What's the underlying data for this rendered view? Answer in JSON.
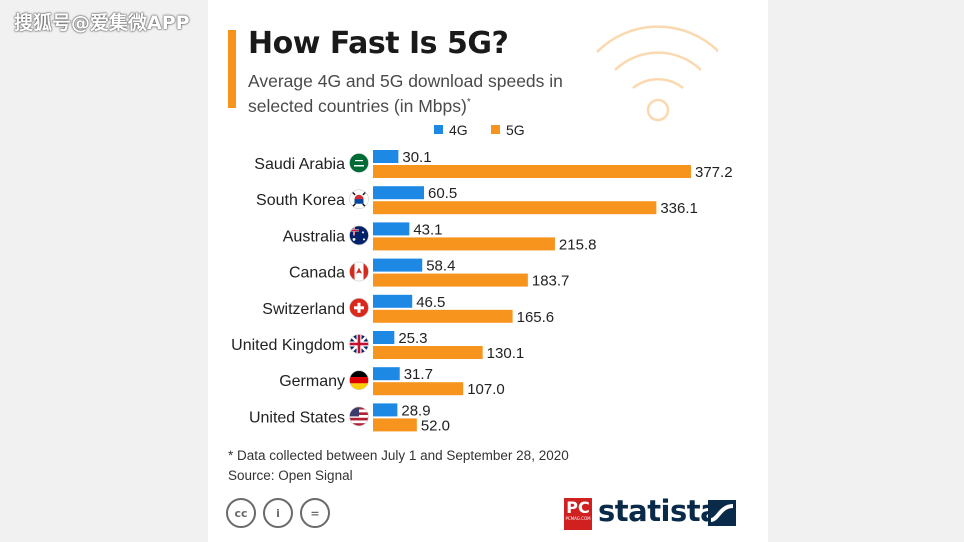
{
  "watermark": "搜狐号@爱集微APP",
  "header": {
    "title": "How Fast Is 5G?",
    "subtitle": "Average 4G and 5G download speeds in selected countries (in Mbps)",
    "subtitle_mark": "*"
  },
  "colors": {
    "accent": "#f7941d",
    "series_4g": "#1e88e5",
    "series_5g": "#f7941d",
    "card": "#ffffff",
    "background": "#f1f1f1"
  },
  "chart_data": {
    "type": "bar",
    "orientation": "horizontal",
    "categories": [
      "Saudi Arabia",
      "South Korea",
      "Australia",
      "Canada",
      "Switzerland",
      "United Kingdom",
      "Germany",
      "United States"
    ],
    "series": [
      {
        "name": "4G",
        "values": [
          30.1,
          60.5,
          43.1,
          58.4,
          46.5,
          25.3,
          31.7,
          28.9
        ]
      },
      {
        "name": "5G",
        "values": [
          377.2,
          336.1,
          215.8,
          183.7,
          165.6,
          130.1,
          107.0,
          52.0
        ]
      }
    ],
    "value_labels": [
      [
        "30.1",
        "60.5",
        "43.1",
        "58.4",
        "46.5",
        "25.3",
        "31.7",
        "28.9"
      ],
      [
        "377.2",
        "336.1",
        "215.8",
        "183.7",
        "165.6",
        "130.1",
        "107.0",
        "52.0"
      ]
    ],
    "legend_position": "top",
    "grid": false,
    "flag_icons": [
      "saudi-arabia-flag-icon",
      "south-korea-flag-icon",
      "australia-flag-icon",
      "canada-flag-icon",
      "switzerland-flag-icon",
      "united-kingdom-flag-icon",
      "germany-flag-icon",
      "united-states-flag-icon"
    ]
  },
  "footer": {
    "note": "* Data collected between July 1 and September 28, 2020",
    "source": "Source: Open Signal",
    "license_icons": [
      "cc-icon",
      "by-icon",
      "nd-icon"
    ],
    "license_glyphs": [
      "cc",
      "i",
      "="
    ],
    "pc_logo": "PC",
    "pc_logo_sub": "PCMAG.COM",
    "brand": "statista"
  }
}
